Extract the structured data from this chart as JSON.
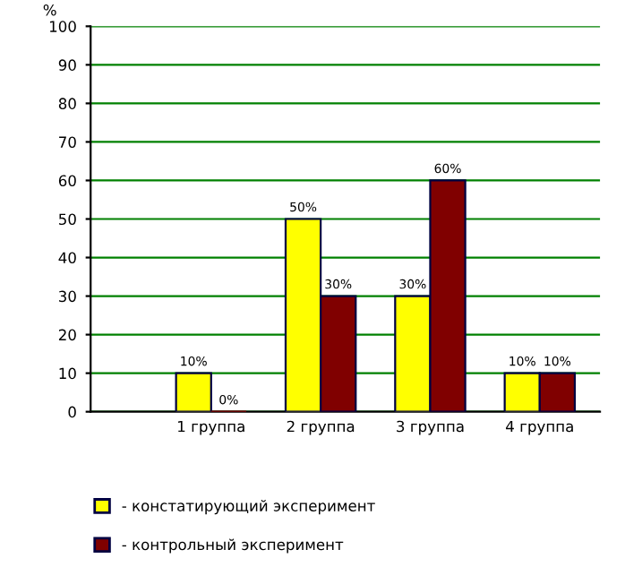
{
  "chart_data": {
    "type": "bar",
    "ylabel": "%",
    "categories": [
      "1 группа",
      "2 группа",
      "3 группа",
      "4 группа"
    ],
    "series": [
      {
        "name": "- констатирующий эксперимент",
        "color": "#ffff00",
        "values": [
          10,
          50,
          30,
          10
        ],
        "value_labels": [
          "10%",
          "50%",
          "30%",
          "10%"
        ]
      },
      {
        "name": "- контрольный эксперимент",
        "color": "#800000",
        "values": [
          0,
          30,
          60,
          10
        ],
        "value_labels": [
          "0%",
          "30%",
          "60%",
          "10%"
        ]
      }
    ],
    "ylim": [
      0,
      100
    ],
    "yticks": [
      0,
      10,
      20,
      30,
      40,
      50,
      60,
      70,
      80,
      90,
      100
    ],
    "grid": "y",
    "legend": "bottom"
  }
}
